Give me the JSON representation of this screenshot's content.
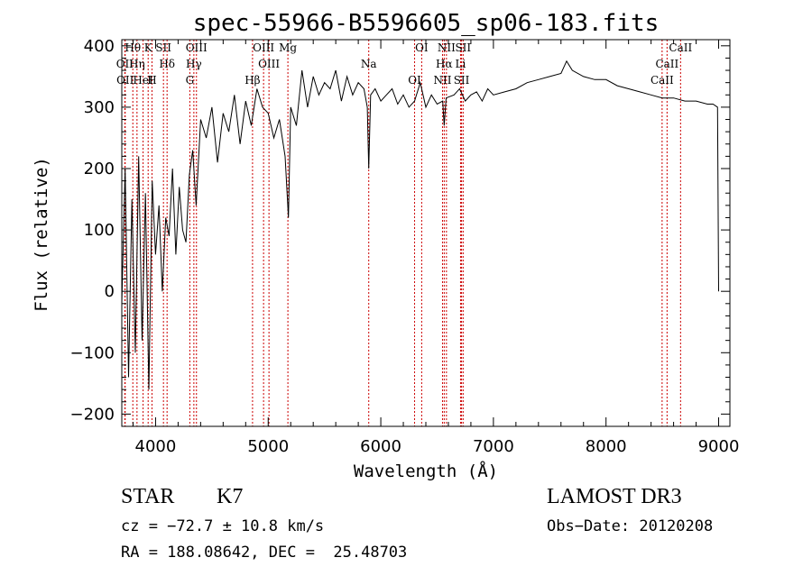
{
  "chart_data": {
    "type": "line",
    "title": "spec-55966-B5596605_sp06-183.fits",
    "xlabel": "Wavelength (Å)",
    "ylabel": "Flux (relative)",
    "xlim": [
      3700,
      9100
    ],
    "ylim": [
      -220,
      410
    ],
    "xticks": [
      4000,
      5000,
      6000,
      7000,
      8000,
      9000
    ],
    "yticks": [
      -200,
      -100,
      0,
      100,
      200,
      300,
      400
    ],
    "series": [
      {
        "name": "flux",
        "x": [
          3700,
          3730,
          3760,
          3790,
          3820,
          3850,
          3880,
          3910,
          3940,
          3970,
          4000,
          4030,
          4060,
          4090,
          4120,
          4150,
          4180,
          4210,
          4240,
          4270,
          4300,
          4330,
          4360,
          4400,
          4450,
          4500,
          4550,
          4600,
          4650,
          4700,
          4750,
          4800,
          4850,
          4900,
          4950,
          5000,
          5050,
          5100,
          5150,
          5180,
          5200,
          5250,
          5300,
          5350,
          5400,
          5450,
          5500,
          5550,
          5600,
          5650,
          5700,
          5750,
          5800,
          5850,
          5880,
          5893,
          5910,
          5950,
          6000,
          6050,
          6100,
          6150,
          6200,
          6250,
          6300,
          6350,
          6400,
          6450,
          6500,
          6550,
          6563,
          6580,
          6650,
          6700,
          6750,
          6800,
          6850,
          6900,
          6950,
          7000,
          7100,
          7200,
          7300,
          7400,
          7500,
          7600,
          7650,
          7700,
          7800,
          7900,
          8000,
          8100,
          8200,
          8300,
          8400,
          8500,
          8600,
          8700,
          8800,
          8900,
          8950,
          8990,
          9000
        ],
        "y": [
          -20,
          200,
          -140,
          150,
          -100,
          220,
          -80,
          160,
          -160,
          180,
          60,
          140,
          0,
          120,
          90,
          200,
          60,
          170,
          100,
          80,
          190,
          230,
          140,
          280,
          250,
          300,
          210,
          290,
          260,
          320,
          240,
          310,
          270,
          330,
          300,
          290,
          250,
          280,
          220,
          120,
          300,
          270,
          360,
          300,
          350,
          320,
          340,
          330,
          360,
          310,
          350,
          320,
          340,
          330,
          300,
          200,
          320,
          330,
          310,
          320,
          330,
          305,
          320,
          300,
          310,
          340,
          300,
          320,
          305,
          310,
          270,
          315,
          320,
          330,
          310,
          320,
          325,
          310,
          330,
          320,
          325,
          330,
          340,
          345,
          350,
          355,
          375,
          360,
          350,
          345,
          345,
          335,
          330,
          325,
          320,
          315,
          315,
          310,
          310,
          305,
          305,
          300,
          0
        ]
      }
    ],
    "spectral_lines": [
      {
        "label": "Hθ",
        "wavelength": 3798
      },
      {
        "label": "OII",
        "wavelength": 3727
      },
      {
        "label": "OII",
        "wavelength": 3730
      },
      {
        "label": "K",
        "wavelength": 3934
      },
      {
        "label": "Hδ",
        "wavelength": 4102
      },
      {
        "label": "HeI",
        "wavelength": 3889
      },
      {
        "label": "SII",
        "wavelength": 4070
      },
      {
        "label": "Hη",
        "wavelength": 3835
      },
      {
        "label": "H",
        "wavelength": 3968
      },
      {
        "label": "OIII",
        "wavelength": 4363
      },
      {
        "label": "Hγ",
        "wavelength": 4340
      },
      {
        "label": "G",
        "wavelength": 4304
      },
      {
        "label": "OIII",
        "wavelength": 4959
      },
      {
        "label": "OIII",
        "wavelength": 5007
      },
      {
        "label": "Hβ",
        "wavelength": 4861
      },
      {
        "label": "Mg",
        "wavelength": 5175
      },
      {
        "label": "Na",
        "wavelength": 5893
      },
      {
        "label": "OI",
        "wavelength": 6300
      },
      {
        "label": "OI",
        "wavelength": 6363
      },
      {
        "label": "Hα",
        "wavelength": 6563
      },
      {
        "label": "SII",
        "wavelength": 6717
      },
      {
        "label": "NII",
        "wavelength": 6583
      },
      {
        "label": "Li",
        "wavelength": 6708
      },
      {
        "label": "NII",
        "wavelength": 6548
      },
      {
        "label": "SII",
        "wavelength": 6731
      },
      {
        "label": "CaII",
        "wavelength": 8542
      },
      {
        "label": "CaII",
        "wavelength": 8498
      },
      {
        "label": "CaII",
        "wavelength": 8662
      }
    ],
    "line_color": "#000000",
    "marker_color": "#cc0000"
  },
  "info": {
    "object_type": "STAR",
    "subclass": "K7",
    "survey": "LAMOST DR3",
    "redshift": "cz = −72.7 ± 10.8 km/s",
    "obs_date": "Obs−Date: 20120208",
    "coords": "RA = 188.08642, DEC =  25.48703"
  }
}
